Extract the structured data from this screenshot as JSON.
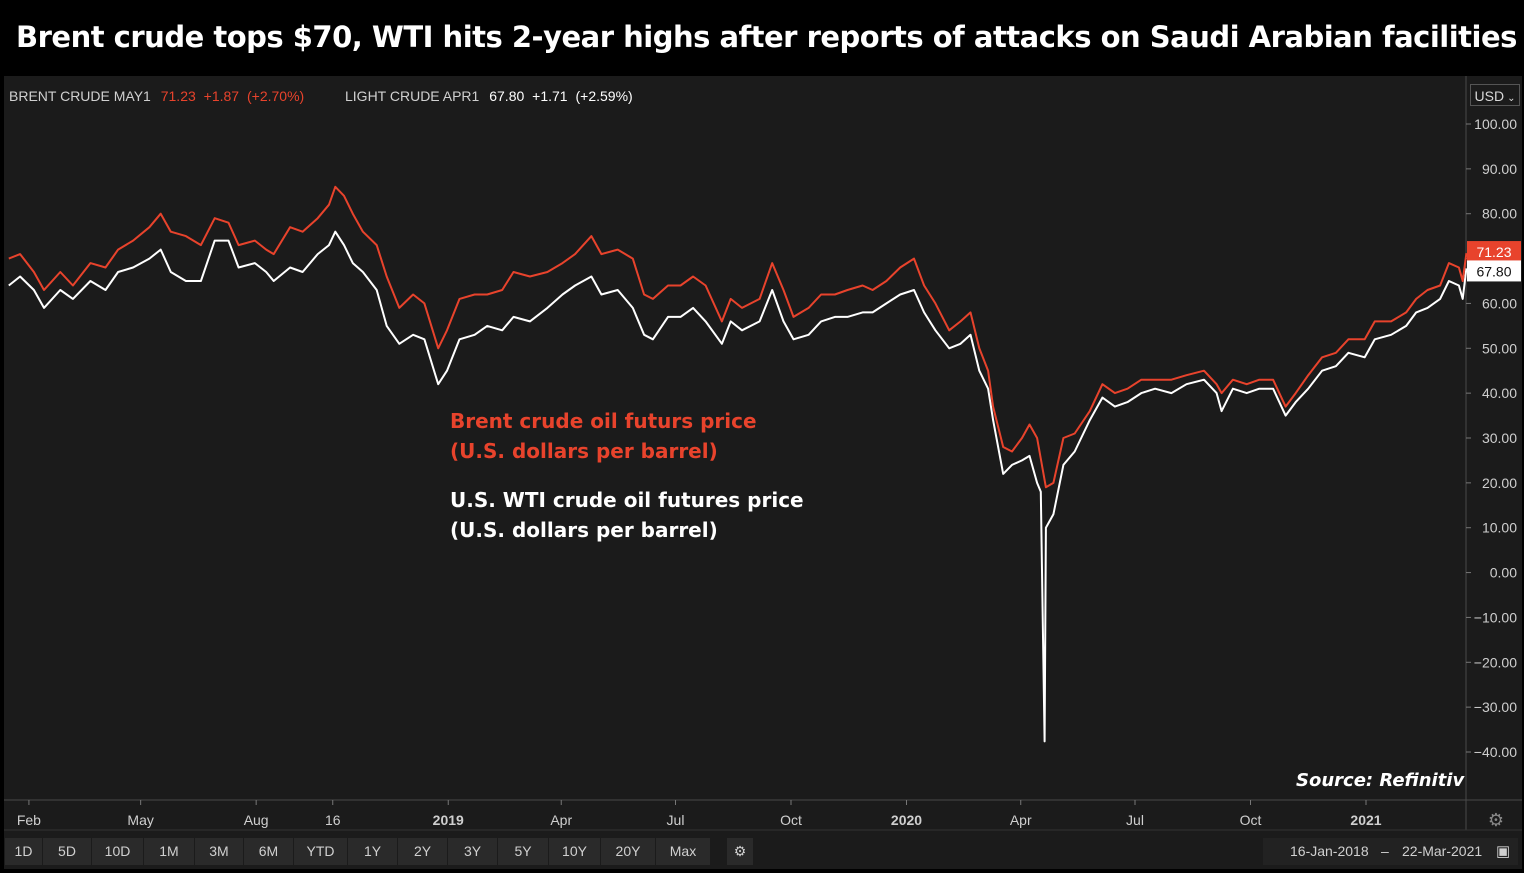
{
  "title": "Brent crude tops $70, WTI hits 2-year highs after reports of attacks on Saudi Arabian facilities",
  "legend": {
    "brent": {
      "name": "BRENT CRUDE MAY1",
      "price": "71.23",
      "change": "+1.87",
      "pct": "(+2.70%)",
      "color": "#e8432c"
    },
    "wti": {
      "name": "LIGHT CRUDE APR1",
      "price": "67.80",
      "change": "+1.71",
      "pct": "(+2.59%)",
      "color": "#ffffff"
    }
  },
  "currency": "USD",
  "annotations": {
    "brent_line1": "Brent crude oil futurs price",
    "brent_line2": "(U.S. dollars per barrel)",
    "wti_line1": "U.S. WTI crude oil  futures price",
    "wti_line2": "(U.S. dollars per barrel)"
  },
  "source": "Source: Refinitiv",
  "range_buttons": [
    "1D",
    "5D",
    "10D",
    "1M",
    "3M",
    "6M",
    "YTD",
    "1Y",
    "2Y",
    "3Y",
    "5Y",
    "10Y",
    "20Y",
    "Max"
  ],
  "date_range": {
    "from": "16-Jan-2018",
    "sep": "–",
    "to": "22-Mar-2021"
  },
  "colors": {
    "background": "#1b1b1b",
    "brent": "#e8432c",
    "wti": "#ffffff",
    "axis_text": "#cfcfcf"
  },
  "chart_data": {
    "type": "line",
    "title": "Brent crude tops $70, WTI hits 2-year highs after reports of attacks on Saudi Arabian facilities",
    "xlabel": "",
    "ylabel": "",
    "ylim": [
      -45,
      110
    ],
    "yticks": [
      100,
      90,
      80,
      70,
      60,
      50,
      40,
      30,
      20,
      10,
      0,
      -10,
      -20,
      -30,
      -40
    ],
    "ytick_labels": [
      "100.00",
      "90.00",
      "80.00",
      "70.00",
      "60.00",
      "50.00",
      "40.00",
      "30.00",
      "20.00",
      "10.00",
      "0.00",
      "−10.00",
      "−20.00",
      "−30.00",
      "−40.00"
    ],
    "xlim": [
      "2018-01-16",
      "2021-03-22"
    ],
    "xticks": [
      {
        "label": "Feb",
        "date": "2018-02-01",
        "bold": false
      },
      {
        "label": "May",
        "date": "2018-05-01",
        "bold": false
      },
      {
        "label": "Aug",
        "date": "2018-08-01",
        "bold": false
      },
      {
        "label": "16",
        "date": "2018-10-01",
        "bold": false
      },
      {
        "label": "2019",
        "date": "2019-01-01",
        "bold": true
      },
      {
        "label": "Apr",
        "date": "2019-04-01",
        "bold": false
      },
      {
        "label": "Jul",
        "date": "2019-07-01",
        "bold": false
      },
      {
        "label": "Oct",
        "date": "2019-10-01",
        "bold": false
      },
      {
        "label": "2020",
        "date": "2020-01-01",
        "bold": true
      },
      {
        "label": "Apr",
        "date": "2020-04-01",
        "bold": false
      },
      {
        "label": "Jul",
        "date": "2020-07-01",
        "bold": false
      },
      {
        "label": "Oct",
        "date": "2020-10-01",
        "bold": false
      },
      {
        "label": "2021",
        "date": "2021-01-01",
        "bold": true
      }
    ],
    "last_value_tags": [
      {
        "series": "BRENT CRUDE MAY1",
        "value": 71.23,
        "label": "71.23"
      },
      {
        "series": "LIGHT CRUDE APR1",
        "value": 67.8,
        "label": "67.80"
      }
    ],
    "series": [
      {
        "name": "BRENT CRUDE MAY1",
        "color": "#e8432c",
        "points": [
          [
            "2018-01-16",
            70
          ],
          [
            "2018-01-25",
            71
          ],
          [
            "2018-02-05",
            67
          ],
          [
            "2018-02-13",
            63
          ],
          [
            "2018-02-26",
            67
          ],
          [
            "2018-03-08",
            64
          ],
          [
            "2018-03-22",
            69
          ],
          [
            "2018-04-03",
            68
          ],
          [
            "2018-04-13",
            72
          ],
          [
            "2018-04-25",
            74
          ],
          [
            "2018-05-08",
            77
          ],
          [
            "2018-05-17",
            80
          ],
          [
            "2018-05-25",
            76
          ],
          [
            "2018-06-06",
            75
          ],
          [
            "2018-06-18",
            73
          ],
          [
            "2018-06-29",
            79
          ],
          [
            "2018-07-10",
            78
          ],
          [
            "2018-07-18",
            73
          ],
          [
            "2018-07-31",
            74
          ],
          [
            "2018-08-09",
            72
          ],
          [
            "2018-08-15",
            71
          ],
          [
            "2018-08-28",
            77
          ],
          [
            "2018-09-07",
            76
          ],
          [
            "2018-09-19",
            79
          ],
          [
            "2018-09-28",
            82
          ],
          [
            "2018-10-03",
            86
          ],
          [
            "2018-10-10",
            84
          ],
          [
            "2018-10-17",
            80
          ],
          [
            "2018-10-25",
            76
          ],
          [
            "2018-11-05",
            73
          ],
          [
            "2018-11-13",
            66
          ],
          [
            "2018-11-23",
            59
          ],
          [
            "2018-12-04",
            62
          ],
          [
            "2018-12-13",
            60
          ],
          [
            "2018-12-24",
            50
          ],
          [
            "2018-12-31",
            54
          ],
          [
            "2019-01-10",
            61
          ],
          [
            "2019-01-22",
            62
          ],
          [
            "2019-02-01",
            62
          ],
          [
            "2019-02-13",
            63
          ],
          [
            "2019-02-22",
            67
          ],
          [
            "2019-03-07",
            66
          ],
          [
            "2019-03-21",
            67
          ],
          [
            "2019-04-02",
            69
          ],
          [
            "2019-04-12",
            71
          ],
          [
            "2019-04-25",
            75
          ],
          [
            "2019-05-03",
            71
          ],
          [
            "2019-05-16",
            72
          ],
          [
            "2019-05-28",
            70
          ],
          [
            "2019-06-06",
            62
          ],
          [
            "2019-06-13",
            61
          ],
          [
            "2019-06-25",
            64
          ],
          [
            "2019-07-05",
            64
          ],
          [
            "2019-07-15",
            66
          ],
          [
            "2019-07-25",
            64
          ],
          [
            "2019-08-07",
            56
          ],
          [
            "2019-08-14",
            61
          ],
          [
            "2019-08-23",
            59
          ],
          [
            "2019-09-06",
            61
          ],
          [
            "2019-09-16",
            69
          ],
          [
            "2019-09-25",
            63
          ],
          [
            "2019-10-03",
            57
          ],
          [
            "2019-10-15",
            59
          ],
          [
            "2019-10-25",
            62
          ],
          [
            "2019-11-05",
            62
          ],
          [
            "2019-11-15",
            63
          ],
          [
            "2019-11-27",
            64
          ],
          [
            "2019-12-05",
            63
          ],
          [
            "2019-12-16",
            65
          ],
          [
            "2019-12-27",
            68
          ],
          [
            "2020-01-07",
            70
          ],
          [
            "2020-01-15",
            64
          ],
          [
            "2020-01-24",
            60
          ],
          [
            "2020-02-04",
            54
          ],
          [
            "2020-02-13",
            56
          ],
          [
            "2020-02-21",
            58
          ],
          [
            "2020-02-28",
            50
          ],
          [
            "2020-03-06",
            45
          ],
          [
            "2020-03-10",
            37
          ],
          [
            "2020-03-18",
            28
          ],
          [
            "2020-03-25",
            27
          ],
          [
            "2020-04-02",
            30
          ],
          [
            "2020-04-08",
            33
          ],
          [
            "2020-04-14",
            30
          ],
          [
            "2020-04-21",
            19
          ],
          [
            "2020-04-27",
            20
          ],
          [
            "2020-05-05",
            30
          ],
          [
            "2020-05-14",
            31
          ],
          [
            "2020-05-26",
            36
          ],
          [
            "2020-06-05",
            42
          ],
          [
            "2020-06-15",
            40
          ],
          [
            "2020-06-25",
            41
          ],
          [
            "2020-07-06",
            43
          ],
          [
            "2020-07-17",
            43
          ],
          [
            "2020-07-30",
            43
          ],
          [
            "2020-08-11",
            44
          ],
          [
            "2020-08-25",
            45
          ],
          [
            "2020-09-04",
            42
          ],
          [
            "2020-09-08",
            40
          ],
          [
            "2020-09-17",
            43
          ],
          [
            "2020-09-28",
            42
          ],
          [
            "2020-10-08",
            43
          ],
          [
            "2020-10-19",
            43
          ],
          [
            "2020-10-29",
            37
          ],
          [
            "2020-11-06",
            40
          ],
          [
            "2020-11-16",
            44
          ],
          [
            "2020-11-27",
            48
          ],
          [
            "2020-12-08",
            49
          ],
          [
            "2020-12-18",
            52
          ],
          [
            "2020-12-31",
            52
          ],
          [
            "2021-01-08",
            56
          ],
          [
            "2021-01-21",
            56
          ],
          [
            "2021-02-02",
            58
          ],
          [
            "2021-02-10",
            61
          ],
          [
            "2021-02-19",
            63
          ],
          [
            "2021-03-01",
            64
          ],
          [
            "2021-03-08",
            69
          ],
          [
            "2021-03-16",
            68
          ],
          [
            "2021-03-19",
            65
          ],
          [
            "2021-03-22",
            71.23
          ]
        ]
      },
      {
        "name": "LIGHT CRUDE APR1",
        "color": "#ffffff",
        "points": [
          [
            "2018-01-16",
            64
          ],
          [
            "2018-01-25",
            66
          ],
          [
            "2018-02-05",
            63
          ],
          [
            "2018-02-13",
            59
          ],
          [
            "2018-02-26",
            63
          ],
          [
            "2018-03-08",
            61
          ],
          [
            "2018-03-22",
            65
          ],
          [
            "2018-04-03",
            63
          ],
          [
            "2018-04-13",
            67
          ],
          [
            "2018-04-25",
            68
          ],
          [
            "2018-05-08",
            70
          ],
          [
            "2018-05-17",
            72
          ],
          [
            "2018-05-25",
            67
          ],
          [
            "2018-06-06",
            65
          ],
          [
            "2018-06-18",
            65
          ],
          [
            "2018-06-29",
            74
          ],
          [
            "2018-07-10",
            74
          ],
          [
            "2018-07-18",
            68
          ],
          [
            "2018-07-31",
            69
          ],
          [
            "2018-08-09",
            67
          ],
          [
            "2018-08-15",
            65
          ],
          [
            "2018-08-28",
            68
          ],
          [
            "2018-09-07",
            67
          ],
          [
            "2018-09-19",
            71
          ],
          [
            "2018-09-28",
            73
          ],
          [
            "2018-10-03",
            76
          ],
          [
            "2018-10-10",
            73
          ],
          [
            "2018-10-17",
            69
          ],
          [
            "2018-10-25",
            67
          ],
          [
            "2018-11-05",
            63
          ],
          [
            "2018-11-13",
            55
          ],
          [
            "2018-11-23",
            51
          ],
          [
            "2018-12-04",
            53
          ],
          [
            "2018-12-13",
            52
          ],
          [
            "2018-12-24",
            42
          ],
          [
            "2018-12-31",
            45
          ],
          [
            "2019-01-10",
            52
          ],
          [
            "2019-01-22",
            53
          ],
          [
            "2019-02-01",
            55
          ],
          [
            "2019-02-13",
            54
          ],
          [
            "2019-02-22",
            57
          ],
          [
            "2019-03-07",
            56
          ],
          [
            "2019-03-21",
            59
          ],
          [
            "2019-04-02",
            62
          ],
          [
            "2019-04-12",
            64
          ],
          [
            "2019-04-25",
            66
          ],
          [
            "2019-05-03",
            62
          ],
          [
            "2019-05-16",
            63
          ],
          [
            "2019-05-28",
            59
          ],
          [
            "2019-06-06",
            53
          ],
          [
            "2019-06-13",
            52
          ],
          [
            "2019-06-25",
            57
          ],
          [
            "2019-07-05",
            57
          ],
          [
            "2019-07-15",
            59
          ],
          [
            "2019-07-25",
            56
          ],
          [
            "2019-08-07",
            51
          ],
          [
            "2019-08-14",
            56
          ],
          [
            "2019-08-23",
            54
          ],
          [
            "2019-09-06",
            56
          ],
          [
            "2019-09-16",
            63
          ],
          [
            "2019-09-25",
            56
          ],
          [
            "2019-10-03",
            52
          ],
          [
            "2019-10-15",
            53
          ],
          [
            "2019-10-25",
            56
          ],
          [
            "2019-11-05",
            57
          ],
          [
            "2019-11-15",
            57
          ],
          [
            "2019-11-27",
            58
          ],
          [
            "2019-12-05",
            58
          ],
          [
            "2019-12-16",
            60
          ],
          [
            "2019-12-27",
            62
          ],
          [
            "2020-01-07",
            63
          ],
          [
            "2020-01-15",
            58
          ],
          [
            "2020-01-24",
            54
          ],
          [
            "2020-02-04",
            50
          ],
          [
            "2020-02-13",
            51
          ],
          [
            "2020-02-21",
            53
          ],
          [
            "2020-02-28",
            45
          ],
          [
            "2020-03-06",
            41
          ],
          [
            "2020-03-10",
            34
          ],
          [
            "2020-03-18",
            22
          ],
          [
            "2020-03-25",
            24
          ],
          [
            "2020-04-02",
            25
          ],
          [
            "2020-04-08",
            26
          ],
          [
            "2020-04-14",
            20
          ],
          [
            "2020-04-17",
            18
          ],
          [
            "2020-04-20",
            -37.63
          ],
          [
            "2020-04-21",
            10
          ],
          [
            "2020-04-27",
            13
          ],
          [
            "2020-05-05",
            24
          ],
          [
            "2020-05-14",
            27
          ],
          [
            "2020-05-26",
            34
          ],
          [
            "2020-06-05",
            39
          ],
          [
            "2020-06-15",
            37
          ],
          [
            "2020-06-25",
            38
          ],
          [
            "2020-07-06",
            40
          ],
          [
            "2020-07-17",
            41
          ],
          [
            "2020-07-30",
            40
          ],
          [
            "2020-08-11",
            42
          ],
          [
            "2020-08-25",
            43
          ],
          [
            "2020-09-04",
            40
          ],
          [
            "2020-09-08",
            36
          ],
          [
            "2020-09-17",
            41
          ],
          [
            "2020-09-28",
            40
          ],
          [
            "2020-10-08",
            41
          ],
          [
            "2020-10-19",
            41
          ],
          [
            "2020-10-29",
            35
          ],
          [
            "2020-11-06",
            38
          ],
          [
            "2020-11-16",
            41
          ],
          [
            "2020-11-27",
            45
          ],
          [
            "2020-12-08",
            46
          ],
          [
            "2020-12-18",
            49
          ],
          [
            "2020-12-31",
            48
          ],
          [
            "2021-01-08",
            52
          ],
          [
            "2021-01-21",
            53
          ],
          [
            "2021-02-02",
            55
          ],
          [
            "2021-02-10",
            58
          ],
          [
            "2021-02-19",
            59
          ],
          [
            "2021-03-01",
            61
          ],
          [
            "2021-03-08",
            65
          ],
          [
            "2021-03-16",
            64
          ],
          [
            "2021-03-19",
            61
          ],
          [
            "2021-03-22",
            67.8
          ]
        ]
      }
    ]
  }
}
